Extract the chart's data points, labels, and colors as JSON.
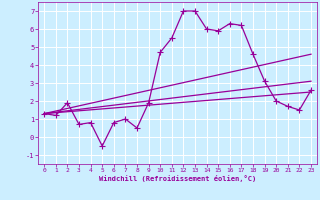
{
  "xlabel": "Windchill (Refroidissement éolien,°C)",
  "bg_color": "#cceeff",
  "line_color": "#990099",
  "grid_color": "#ffffff",
  "xlim": [
    -0.5,
    23.5
  ],
  "ylim": [
    -1.5,
    7.5
  ],
  "yticks": [
    -1,
    0,
    1,
    2,
    3,
    4,
    5,
    6,
    7
  ],
  "xticks": [
    0,
    1,
    2,
    3,
    4,
    5,
    6,
    7,
    8,
    9,
    10,
    11,
    12,
    13,
    14,
    15,
    16,
    17,
    18,
    19,
    20,
    21,
    22,
    23
  ],
  "series1_x": [
    0,
    1,
    2,
    3,
    4,
    5,
    6,
    7,
    8,
    9,
    10,
    11,
    12,
    13,
    14,
    15,
    16,
    17,
    18,
    19,
    20,
    21,
    22,
    23
  ],
  "series1_y": [
    1.3,
    1.2,
    1.9,
    0.7,
    0.8,
    -0.5,
    0.8,
    1.0,
    0.5,
    1.9,
    4.7,
    5.5,
    7.0,
    7.0,
    6.0,
    5.9,
    6.3,
    6.2,
    4.6,
    3.1,
    2.0,
    1.7,
    1.5,
    2.6
  ],
  "series2_x": [
    0,
    23
  ],
  "series2_y": [
    1.3,
    4.6
  ],
  "series3_x": [
    0,
    23
  ],
  "series3_y": [
    1.3,
    3.1
  ],
  "series4_x": [
    0,
    23
  ],
  "series4_y": [
    1.3,
    2.5
  ]
}
